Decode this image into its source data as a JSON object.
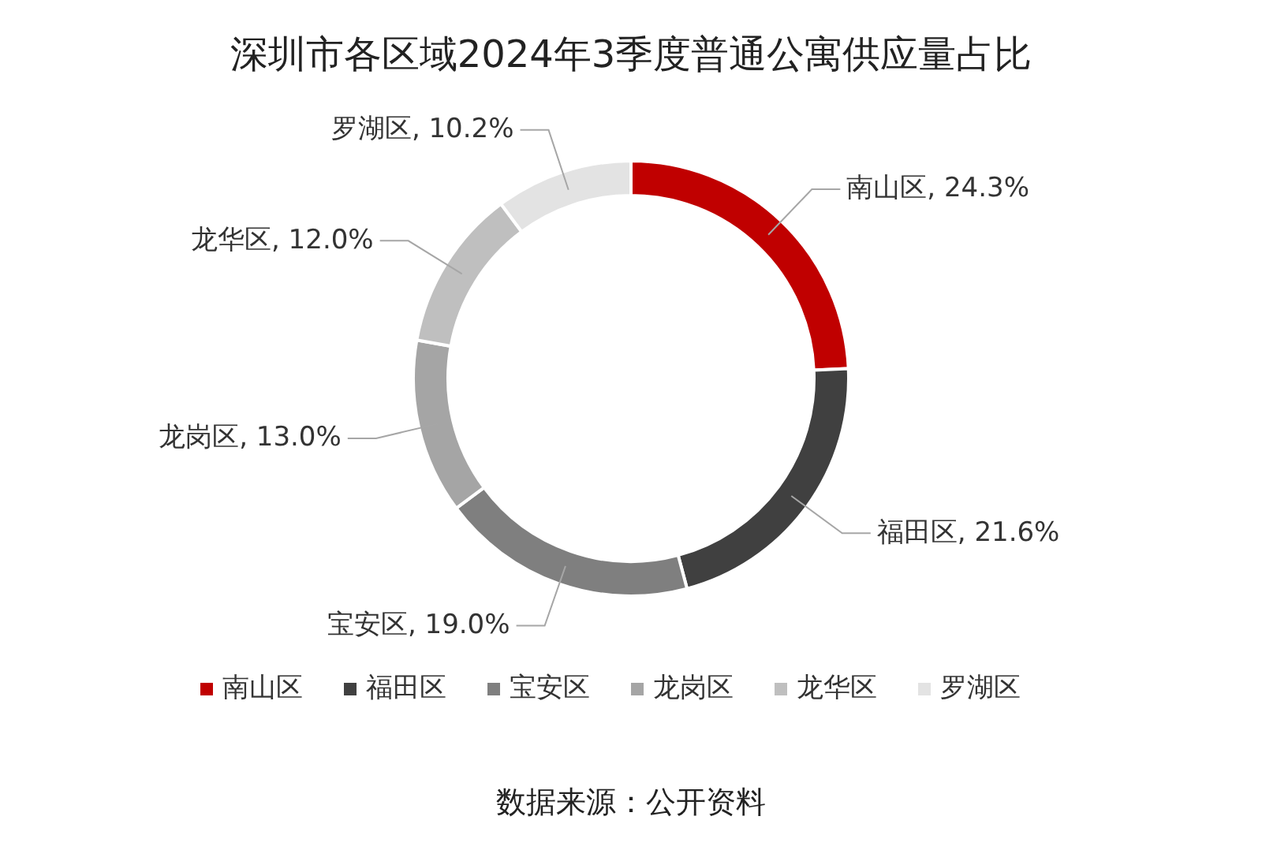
{
  "chart_data": {
    "type": "donut",
    "title": "深圳市各区域2024年3季度普通公寓供应量占比",
    "categories": [
      "南山区",
      "福田区",
      "宝安区",
      "龙岗区",
      "龙华区",
      "罗湖区"
    ],
    "values": [
      24.3,
      21.6,
      19.0,
      13.0,
      12.0,
      10.2
    ],
    "colors": [
      "#c00000",
      "#404040",
      "#7f7f7f",
      "#a5a5a5",
      "#bfbfbf",
      "#e3e3e3"
    ],
    "value_labels": [
      "南山区, 24.3%",
      "福田区, 21.6%",
      "宝安区, 19.0%",
      "龙岗区, 13.0%",
      "龙华区, 12.0%",
      "罗湖区, 10.2%"
    ],
    "legend": "bottom",
    "annotations": [
      "数据来源：公开资料"
    ]
  }
}
